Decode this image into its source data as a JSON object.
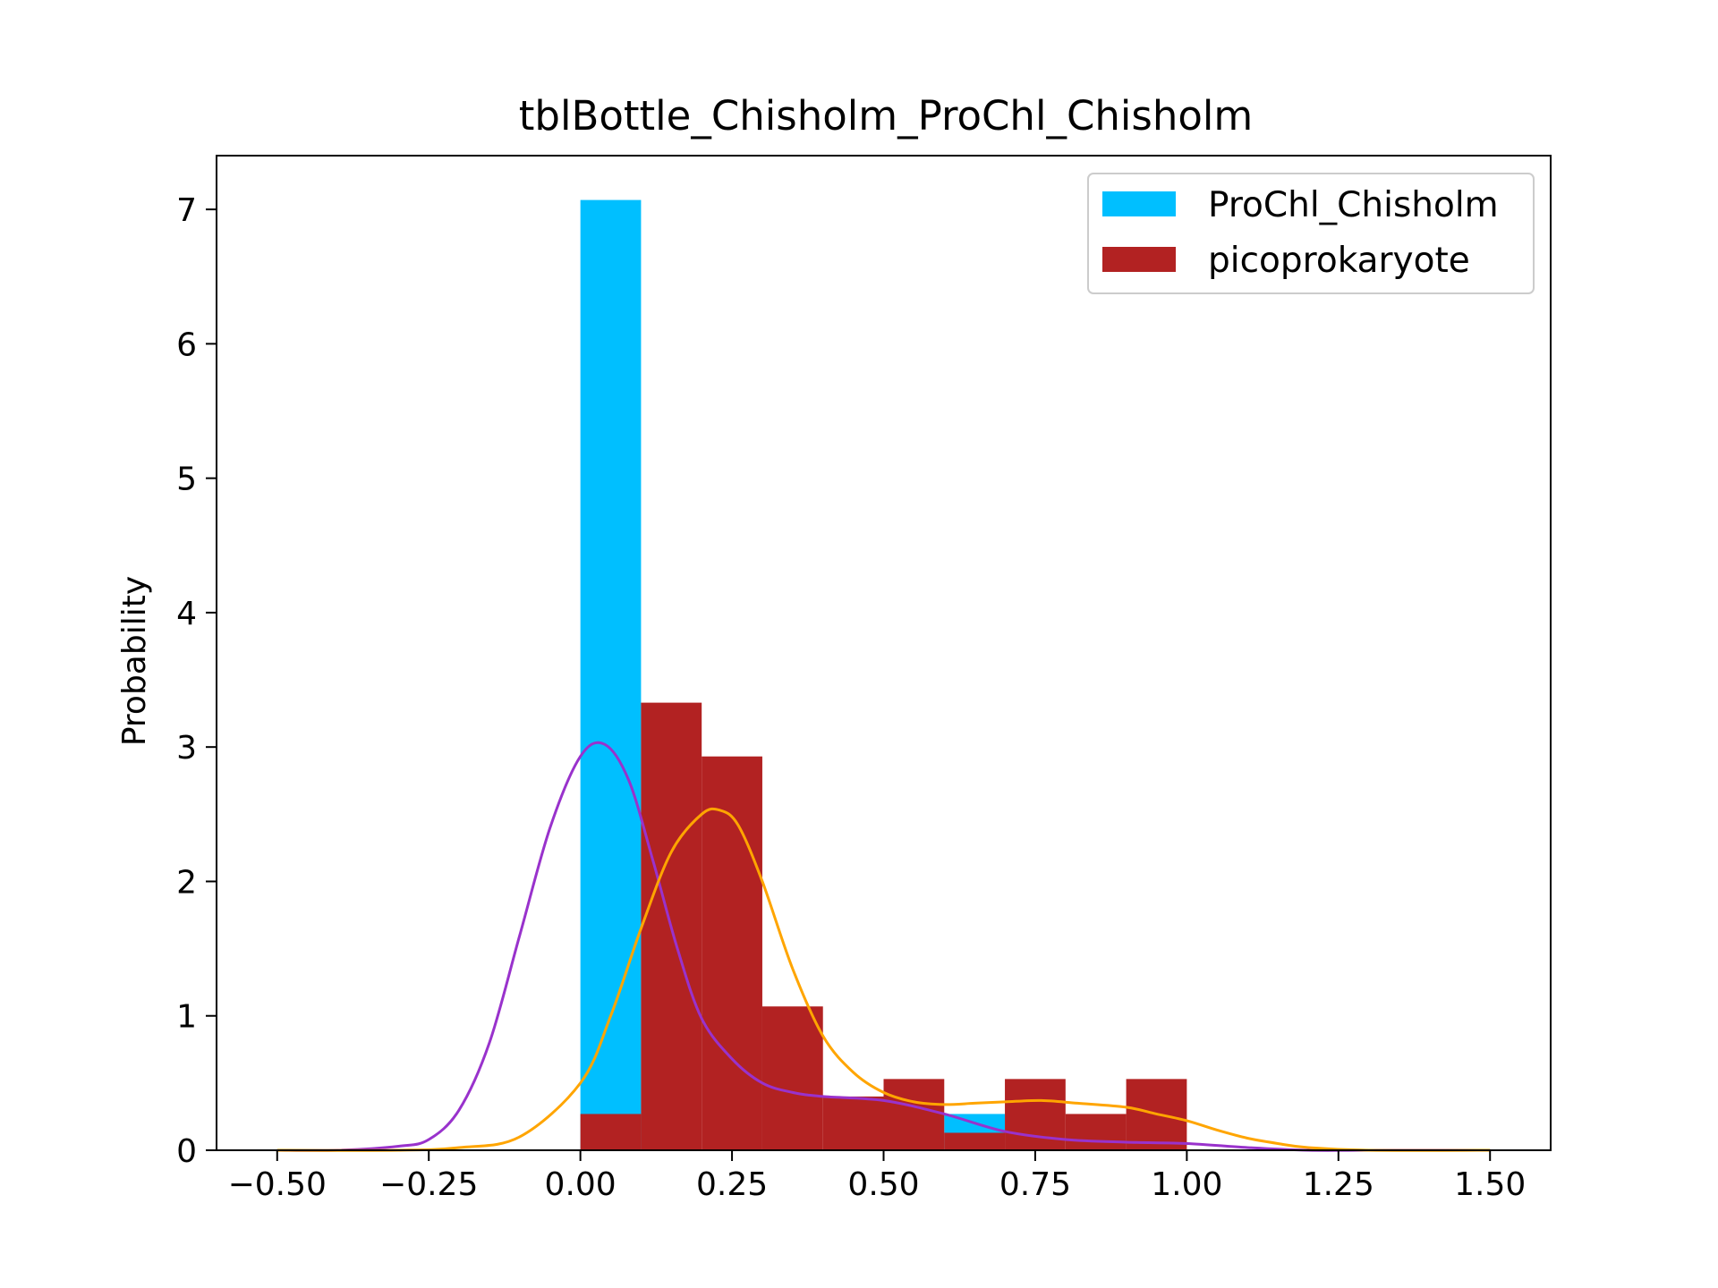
{
  "chart_data": {
    "type": "bar",
    "title": "tblBottle_Chisholm_ProChl_Chisholm",
    "xlabel": "",
    "ylabel": "Probability",
    "xlim": [
      -0.6,
      1.6
    ],
    "ylim": [
      0,
      7.4
    ],
    "xticks": [
      -0.5,
      -0.25,
      0.0,
      0.25,
      0.5,
      0.75,
      1.0,
      1.25,
      1.5
    ],
    "xtick_labels": [
      "−0.50",
      "−0.25",
      "0.00",
      "0.25",
      "0.50",
      "0.75",
      "1.00",
      "1.25",
      "1.50"
    ],
    "yticks": [
      0,
      1,
      2,
      3,
      4,
      5,
      6,
      7
    ],
    "ytick_labels": [
      "0",
      "1",
      "2",
      "3",
      "4",
      "5",
      "6",
      "7"
    ],
    "grid": false,
    "legend_position": "top-right",
    "histograms": [
      {
        "name": "ProChl_Chisholm",
        "color": "#00bfff",
        "bin_edges": [
          0.0,
          0.1,
          0.2,
          0.3,
          0.4,
          0.5,
          0.6,
          0.7,
          0.8,
          0.9,
          1.0
        ],
        "values": [
          7.07,
          0.0,
          0.0,
          0.0,
          0.0,
          0.0,
          0.27,
          0.0,
          0.0,
          0.0
        ]
      },
      {
        "name": "picoprokaryote",
        "color": "#b22222",
        "bin_edges": [
          0.0,
          0.1,
          0.2,
          0.3,
          0.4,
          0.5,
          0.6,
          0.7,
          0.8,
          0.9,
          1.0
        ],
        "values": [
          0.27,
          3.33,
          2.93,
          1.07,
          0.4,
          0.53,
          0.13,
          0.53,
          0.27,
          0.53
        ]
      }
    ],
    "kde_curves": [
      {
        "color": "#9932cc",
        "x": [
          -0.5,
          -0.4,
          -0.3,
          -0.25,
          -0.2,
          -0.15,
          -0.1,
          -0.05,
          0.0,
          0.04,
          0.08,
          0.12,
          0.16,
          0.2,
          0.25,
          0.3,
          0.35,
          0.4,
          0.5,
          0.6,
          0.7,
          0.8,
          0.9,
          1.0,
          1.1,
          1.2,
          1.3,
          1.5
        ],
        "y": [
          0.0,
          0.0,
          0.03,
          0.08,
          0.3,
          0.8,
          1.6,
          2.4,
          2.93,
          3.02,
          2.75,
          2.15,
          1.5,
          0.98,
          0.68,
          0.5,
          0.43,
          0.4,
          0.37,
          0.27,
          0.14,
          0.08,
          0.06,
          0.05,
          0.02,
          0.0,
          0.0,
          0.0
        ]
      },
      {
        "color": "#ffa500",
        "x": [
          -0.5,
          -0.3,
          -0.2,
          -0.1,
          0.0,
          0.05,
          0.1,
          0.15,
          0.2,
          0.23,
          0.26,
          0.3,
          0.35,
          0.4,
          0.45,
          0.5,
          0.55,
          0.6,
          0.65,
          0.7,
          0.76,
          0.82,
          0.9,
          0.95,
          1.0,
          1.05,
          1.1,
          1.15,
          1.2,
          1.3,
          1.5
        ],
        "y": [
          0.0,
          0.0,
          0.02,
          0.1,
          0.5,
          1.0,
          1.65,
          2.22,
          2.5,
          2.53,
          2.42,
          2.0,
          1.35,
          0.85,
          0.58,
          0.43,
          0.36,
          0.34,
          0.35,
          0.36,
          0.37,
          0.35,
          0.32,
          0.27,
          0.22,
          0.15,
          0.09,
          0.05,
          0.02,
          0.0,
          0.0
        ]
      }
    ]
  }
}
